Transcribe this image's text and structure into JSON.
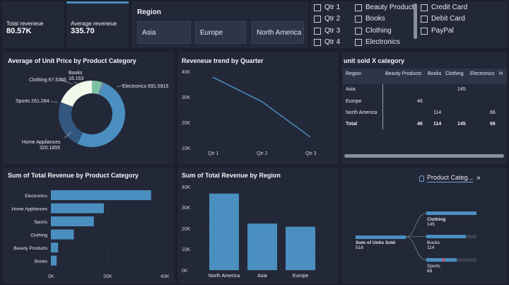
{
  "kpis": [
    {
      "label": "Total reveneue",
      "value": "80.57K"
    },
    {
      "label": "Average reveneue",
      "value": "335.70"
    }
  ],
  "region_slicer": {
    "title": "Region",
    "options": [
      "Asia",
      "Europe",
      "North America"
    ]
  },
  "quarter_slicer": {
    "options": [
      "Qtr 1",
      "Qtr 2",
      "Qtr 3",
      "Qtr 4"
    ]
  },
  "category_slicer": {
    "options": [
      "Beauty Products",
      "Books",
      "Clothing",
      "Electronics"
    ]
  },
  "payment_slicer": {
    "options": [
      "Credit Card",
      "Debit Card",
      "PayPal"
    ]
  },
  "donut": {
    "title": "Average of Unit Price by Product Category",
    "labels": {
      "books_name": "Books",
      "books_value": "16.153",
      "clothing": "Clothing 67.5365",
      "sports": "Sports 261.284",
      "home_name": "Home Appliances",
      "home_value": "320.1855",
      "electronics": "Electronics 691.5915"
    },
    "colors": {
      "electronics": "#4a8fbf",
      "home": "#34577f",
      "sports": "#f3f9ea",
      "clothing": "#7fc3a5",
      "books": "#6e8fb6"
    }
  },
  "line": {
    "title": "Reveneue trend by Quarter",
    "y_ticks": [
      "40K",
      "30K",
      "20K",
      "10K"
    ],
    "x_ticks": [
      "Qtr 1",
      "Qtr 2",
      "Qtr 3"
    ]
  },
  "matrix": {
    "title": "unit sold X category",
    "headers": [
      "Region",
      "Beauty Products",
      "Books",
      "Clothing",
      "Electronics",
      "H"
    ],
    "rows": [
      {
        "region": "Asia",
        "clothing": "145"
      },
      {
        "region": "Europe",
        "beauty": "46"
      },
      {
        "region": "North America",
        "books": "114",
        "electronics": "66"
      }
    ],
    "total": {
      "label": "Total",
      "beauty": "46",
      "books": "114",
      "clothing": "145",
      "electronics": "66"
    }
  },
  "hbar": {
    "title": "Sum of Total Revenue by Product Category",
    "x_ticks": [
      "0K",
      "20K",
      "40K"
    ]
  },
  "vbar": {
    "title": "Sum of Total Revenue by Region",
    "y_ticks": [
      "40K",
      "30K",
      "20K",
      "10K",
      "0K"
    ]
  },
  "decomp": {
    "filter_label": "Product Categ...",
    "close_glyph": "×",
    "root_label": "Sum of Units Sold",
    "root_value": "518",
    "nodes": [
      {
        "label": "Clothing",
        "value": "145"
      },
      {
        "label": "Books",
        "value": "114"
      },
      {
        "label": "Sports",
        "value": "88"
      }
    ],
    "colors": {
      "bar": "#4a8fbf",
      "track": "#3a4050",
      "accent": "#c0506a"
    }
  },
  "chart_data": [
    {
      "type": "pie",
      "title": "Average of Unit Price by Product Category",
      "categories": [
        "Electronics",
        "Home Appliances",
        "Sports",
        "Clothing",
        "Books"
      ],
      "values": [
        691.5915,
        320.1855,
        261.284,
        67.5365,
        16.153
      ]
    },
    {
      "type": "line",
      "title": "Reveneue trend by Quarter",
      "categories": [
        "Qtr 1",
        "Qtr 2",
        "Qtr 3"
      ],
      "values": [
        38000,
        28500,
        14500
      ],
      "ylim": [
        10000,
        40000
      ]
    },
    {
      "type": "bar",
      "title": "Sum of Total Revenue by Product Category",
      "categories": [
        "Electronics",
        "Home Appliances",
        "Sports",
        "Clothing",
        "Beauty Products",
        "Books"
      ],
      "values": [
        35000,
        18500,
        15000,
        8000,
        2500,
        2000
      ],
      "xlim": [
        0,
        40000
      ]
    },
    {
      "type": "bar",
      "title": "Sum of Total Revenue by Region",
      "categories": [
        "North America",
        "Asia",
        "Europe"
      ],
      "values": [
        37000,
        22500,
        21000
      ],
      "ylim": [
        0,
        40000
      ]
    }
  ]
}
